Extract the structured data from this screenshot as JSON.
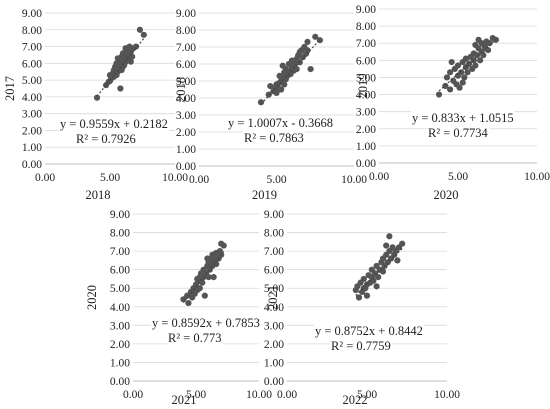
{
  "chart_data": [
    {
      "type": "scatter",
      "xlabel": "2018",
      "ylabel": "2017",
      "xlim": [
        0,
        10
      ],
      "ylim": [
        0,
        9
      ],
      "xticks": [
        "0.00",
        "5.00",
        "10.00"
      ],
      "yticks": [
        "0.00",
        "1.00",
        "2.00",
        "3.00",
        "4.00",
        "5.00",
        "6.00",
        "7.00",
        "8.00",
        "9.00"
      ],
      "grid": true,
      "trendline": {
        "slope": 0.9559,
        "intercept": 0.2182,
        "style": "dotted"
      },
      "equation": "y = 0.9559x + 0.2182",
      "r2": "R² = 0.7926",
      "points": [
        [
          4.0,
          3.95
        ],
        [
          4.7,
          4.7
        ],
        [
          4.9,
          4.9
        ],
        [
          5.0,
          4.95
        ],
        [
          5.0,
          5.3
        ],
        [
          5.1,
          5.1
        ],
        [
          5.2,
          5.4
        ],
        [
          5.3,
          5.2
        ],
        [
          5.3,
          5.6
        ],
        [
          5.4,
          5.45
        ],
        [
          5.4,
          5.8
        ],
        [
          5.5,
          5.3
        ],
        [
          5.5,
          5.6
        ],
        [
          5.5,
          6.0
        ],
        [
          5.6,
          5.5
        ],
        [
          5.6,
          5.8
        ],
        [
          5.7,
          5.6
        ],
        [
          5.7,
          5.9
        ],
        [
          5.7,
          6.2
        ],
        [
          5.8,
          4.5
        ],
        [
          5.8,
          5.7
        ],
        [
          5.8,
          6.1
        ],
        [
          5.9,
          5.6
        ],
        [
          5.9,
          6.0
        ],
        [
          5.9,
          6.4
        ],
        [
          6.0,
          5.8
        ],
        [
          6.0,
          6.2
        ],
        [
          6.0,
          6.6
        ],
        [
          6.1,
          5.9
        ],
        [
          6.1,
          6.3
        ],
        [
          6.2,
          6.1
        ],
        [
          6.2,
          6.5
        ],
        [
          6.3,
          6.3
        ],
        [
          6.3,
          6.8
        ],
        [
          6.4,
          6.2
        ],
        [
          6.4,
          6.6
        ],
        [
          6.5,
          6.5
        ],
        [
          6.5,
          7.0
        ],
        [
          6.6,
          6.7
        ],
        [
          6.7,
          6.4
        ],
        [
          6.8,
          6.9
        ],
        [
          7.0,
          7.0
        ],
        [
          7.3,
          8.0
        ],
        [
          7.6,
          7.7
        ],
        [
          6.2,
          6.9
        ],
        [
          5.6,
          6.3
        ],
        [
          6.6,
          6.1
        ]
      ]
    },
    {
      "type": "scatter",
      "xlabel": "2019",
      "ylabel": "2018",
      "xlim": [
        0,
        10
      ],
      "ylim": [
        0,
        9
      ],
      "xticks": [
        "0.00",
        "5.00",
        "10.00"
      ],
      "yticks": [
        "0.00",
        "1.00",
        "2.00",
        "3.00",
        "4.00",
        "5.00",
        "6.00",
        "7.00",
        "8.00",
        "9.00"
      ],
      "grid": true,
      "trendline": {
        "slope": 1.0007,
        "intercept": -0.3668,
        "style": "dotted"
      },
      "equation": "y = 1.0007x - 0.3668",
      "r2": "R² = 0.7863",
      "points": [
        [
          4.0,
          3.75
        ],
        [
          4.5,
          4.2
        ],
        [
          4.6,
          4.7
        ],
        [
          4.8,
          4.4
        ],
        [
          4.9,
          4.6
        ],
        [
          5.0,
          4.3
        ],
        [
          5.0,
          4.8
        ],
        [
          5.1,
          4.6
        ],
        [
          5.2,
          4.9
        ],
        [
          5.2,
          5.3
        ],
        [
          5.3,
          4.5
        ],
        [
          5.3,
          5.0
        ],
        [
          5.4,
          5.2
        ],
        [
          5.5,
          4.8
        ],
        [
          5.5,
          5.5
        ],
        [
          5.6,
          5.1
        ],
        [
          5.6,
          5.7
        ],
        [
          5.7,
          5.3
        ],
        [
          5.8,
          5.6
        ],
        [
          5.8,
          6.0
        ],
        [
          5.9,
          5.4
        ],
        [
          6.0,
          5.8
        ],
        [
          6.0,
          6.2
        ],
        [
          6.1,
          5.6
        ],
        [
          6.2,
          6.0
        ],
        [
          6.3,
          6.3
        ],
        [
          6.3,
          5.7
        ],
        [
          6.4,
          6.5
        ],
        [
          6.5,
          6.1
        ],
        [
          6.6,
          6.8
        ],
        [
          6.7,
          6.4
        ],
        [
          6.8,
          7.0
        ],
        [
          6.9,
          6.6
        ],
        [
          7.0,
          7.3
        ],
        [
          7.0,
          6.8
        ],
        [
          7.2,
          5.7
        ],
        [
          7.5,
          7.6
        ],
        [
          7.8,
          7.4
        ],
        [
          5.4,
          5.9
        ],
        [
          6.5,
          6.7
        ]
      ]
    },
    {
      "type": "scatter",
      "xlabel": "2020",
      "ylabel": "2019",
      "xlim": [
        0,
        10
      ],
      "ylim": [
        0,
        9
      ],
      "xticks": [
        "0.00",
        "5.00",
        "10.00"
      ],
      "yticks": [
        "0.00",
        "1.00",
        "2.00",
        "3.00",
        "4.00",
        "5.00",
        "6.00",
        "7.00",
        "8.00",
        "9.00"
      ],
      "grid": true,
      "trendline": {
        "slope": 0.833,
        "intercept": 1.0515,
        "style": "dotted"
      },
      "equation": "y = 0.833x + 1.0515",
      "r2": "R² = 0.7734",
      "points": [
        [
          3.8,
          4.0
        ],
        [
          4.2,
          4.5
        ],
        [
          4.3,
          5.0
        ],
        [
          4.5,
          4.3
        ],
        [
          4.5,
          5.3
        ],
        [
          4.7,
          4.8
        ],
        [
          4.8,
          5.5
        ],
        [
          4.9,
          4.6
        ],
        [
          5.0,
          5.1
        ],
        [
          5.0,
          5.7
        ],
        [
          5.1,
          4.4
        ],
        [
          5.2,
          5.3
        ],
        [
          5.3,
          5.9
        ],
        [
          5.4,
          5.0
        ],
        [
          5.5,
          5.6
        ],
        [
          5.5,
          6.1
        ],
        [
          5.6,
          5.3
        ],
        [
          5.7,
          5.8
        ],
        [
          5.8,
          6.2
        ],
        [
          5.9,
          5.5
        ],
        [
          6.0,
          6.0
        ],
        [
          6.0,
          6.4
        ],
        [
          6.1,
          5.7
        ],
        [
          6.2,
          6.3
        ],
        [
          6.3,
          6.7
        ],
        [
          6.4,
          6.0
        ],
        [
          6.5,
          6.5
        ],
        [
          6.5,
          7.0
        ],
        [
          6.6,
          6.3
        ],
        [
          6.7,
          6.8
        ],
        [
          6.8,
          7.1
        ],
        [
          6.9,
          6.6
        ],
        [
          7.0,
          7.0
        ],
        [
          7.2,
          7.3
        ],
        [
          7.4,
          7.2
        ],
        [
          6.3,
          7.2
        ],
        [
          5.3,
          4.7
        ],
        [
          6.1,
          6.9
        ],
        [
          4.6,
          5.9
        ]
      ]
    },
    {
      "type": "scatter",
      "xlabel": "2021",
      "ylabel": "2020",
      "xlim": [
        0,
        10
      ],
      "ylim": [
        0,
        9
      ],
      "xticks": [
        "0.00",
        "5.00",
        "10.00"
      ],
      "yticks": [
        "0.00",
        "1.00",
        "2.00",
        "3.00",
        "4.00",
        "5.00",
        "6.00",
        "7.00",
        "8.00",
        "9.00"
      ],
      "grid": true,
      "trendline": {
        "slope": 0.8592,
        "intercept": 0.7853,
        "style": "dotted"
      },
      "equation": "y = 0.8592x + 0.7853",
      "r2": "R² = 0.773",
      "points": [
        [
          4.0,
          4.4
        ],
        [
          4.3,
          4.6
        ],
        [
          4.4,
          4.2
        ],
        [
          4.6,
          4.8
        ],
        [
          4.7,
          4.5
        ],
        [
          4.8,
          5.0
        ],
        [
          4.9,
          4.7
        ],
        [
          5.0,
          5.2
        ],
        [
          5.1,
          4.9
        ],
        [
          5.2,
          5.4
        ],
        [
          5.3,
          5.6
        ],
        [
          5.3,
          5.0
        ],
        [
          5.4,
          5.8
        ],
        [
          5.5,
          5.3
        ],
        [
          5.6,
          5.6
        ],
        [
          5.6,
          6.0
        ],
        [
          5.7,
          4.6
        ],
        [
          5.8,
          5.8
        ],
        [
          5.9,
          6.2
        ],
        [
          6.0,
          5.6
        ],
        [
          6.0,
          6.4
        ],
        [
          6.1,
          6.0
        ],
        [
          6.2,
          6.6
        ],
        [
          6.3,
          6.2
        ],
        [
          6.3,
          6.8
        ],
        [
          6.4,
          6.5
        ],
        [
          6.5,
          6.7
        ],
        [
          6.6,
          6.3
        ],
        [
          6.7,
          6.9
        ],
        [
          6.8,
          6.6
        ],
        [
          6.9,
          7.0
        ],
        [
          7.0,
          6.8
        ],
        [
          7.0,
          7.4
        ],
        [
          7.2,
          7.3
        ],
        [
          5.9,
          6.6
        ],
        [
          6.4,
          5.6
        ],
        [
          5.1,
          5.5
        ],
        [
          6.6,
          6.9
        ]
      ]
    },
    {
      "type": "scatter",
      "xlabel": "2022",
      "ylabel": "2021",
      "xlim": [
        0,
        10
      ],
      "ylim": [
        0,
        9
      ],
      "xticks": [
        "0.00",
        "5.00",
        "10.00"
      ],
      "yticks": [
        "0.00",
        "1.00",
        "2.00",
        "3.00",
        "4.00",
        "5.00",
        "6.00",
        "7.00",
        "8.00",
        "9.00"
      ],
      "grid": true,
      "trendline": {
        "slope": 0.8752,
        "intercept": 0.8442,
        "style": "dotted"
      },
      "equation": "y = 0.8752x + 0.8442",
      "r2": "R² = 0.7759",
      "points": [
        [
          4.3,
          4.9
        ],
        [
          4.4,
          5.1
        ],
        [
          4.5,
          4.5
        ],
        [
          4.6,
          5.3
        ],
        [
          4.7,
          4.8
        ],
        [
          4.8,
          5.5
        ],
        [
          4.9,
          5.0
        ],
        [
          5.0,
          5.2
        ],
        [
          5.0,
          4.6
        ],
        [
          5.1,
          5.7
        ],
        [
          5.2,
          5.3
        ],
        [
          5.3,
          5.6
        ],
        [
          5.3,
          6.0
        ],
        [
          5.4,
          5.4
        ],
        [
          5.5,
          5.8
        ],
        [
          5.6,
          6.2
        ],
        [
          5.7,
          5.6
        ],
        [
          5.8,
          6.0
        ],
        [
          5.9,
          6.4
        ],
        [
          6.0,
          5.9
        ],
        [
          6.0,
          6.6
        ],
        [
          6.1,
          6.2
        ],
        [
          6.2,
          6.8
        ],
        [
          6.3,
          6.4
        ],
        [
          6.4,
          7.0
        ],
        [
          6.5,
          6.6
        ],
        [
          6.6,
          7.2
        ],
        [
          6.7,
          6.8
        ],
        [
          6.8,
          7.0
        ],
        [
          7.0,
          7.2
        ],
        [
          7.2,
          7.4
        ],
        [
          6.4,
          7.8
        ],
        [
          5.6,
          5.1
        ],
        [
          6.2,
          7.3
        ],
        [
          4.8,
          5.0
        ],
        [
          6.9,
          6.5
        ]
      ]
    }
  ]
}
